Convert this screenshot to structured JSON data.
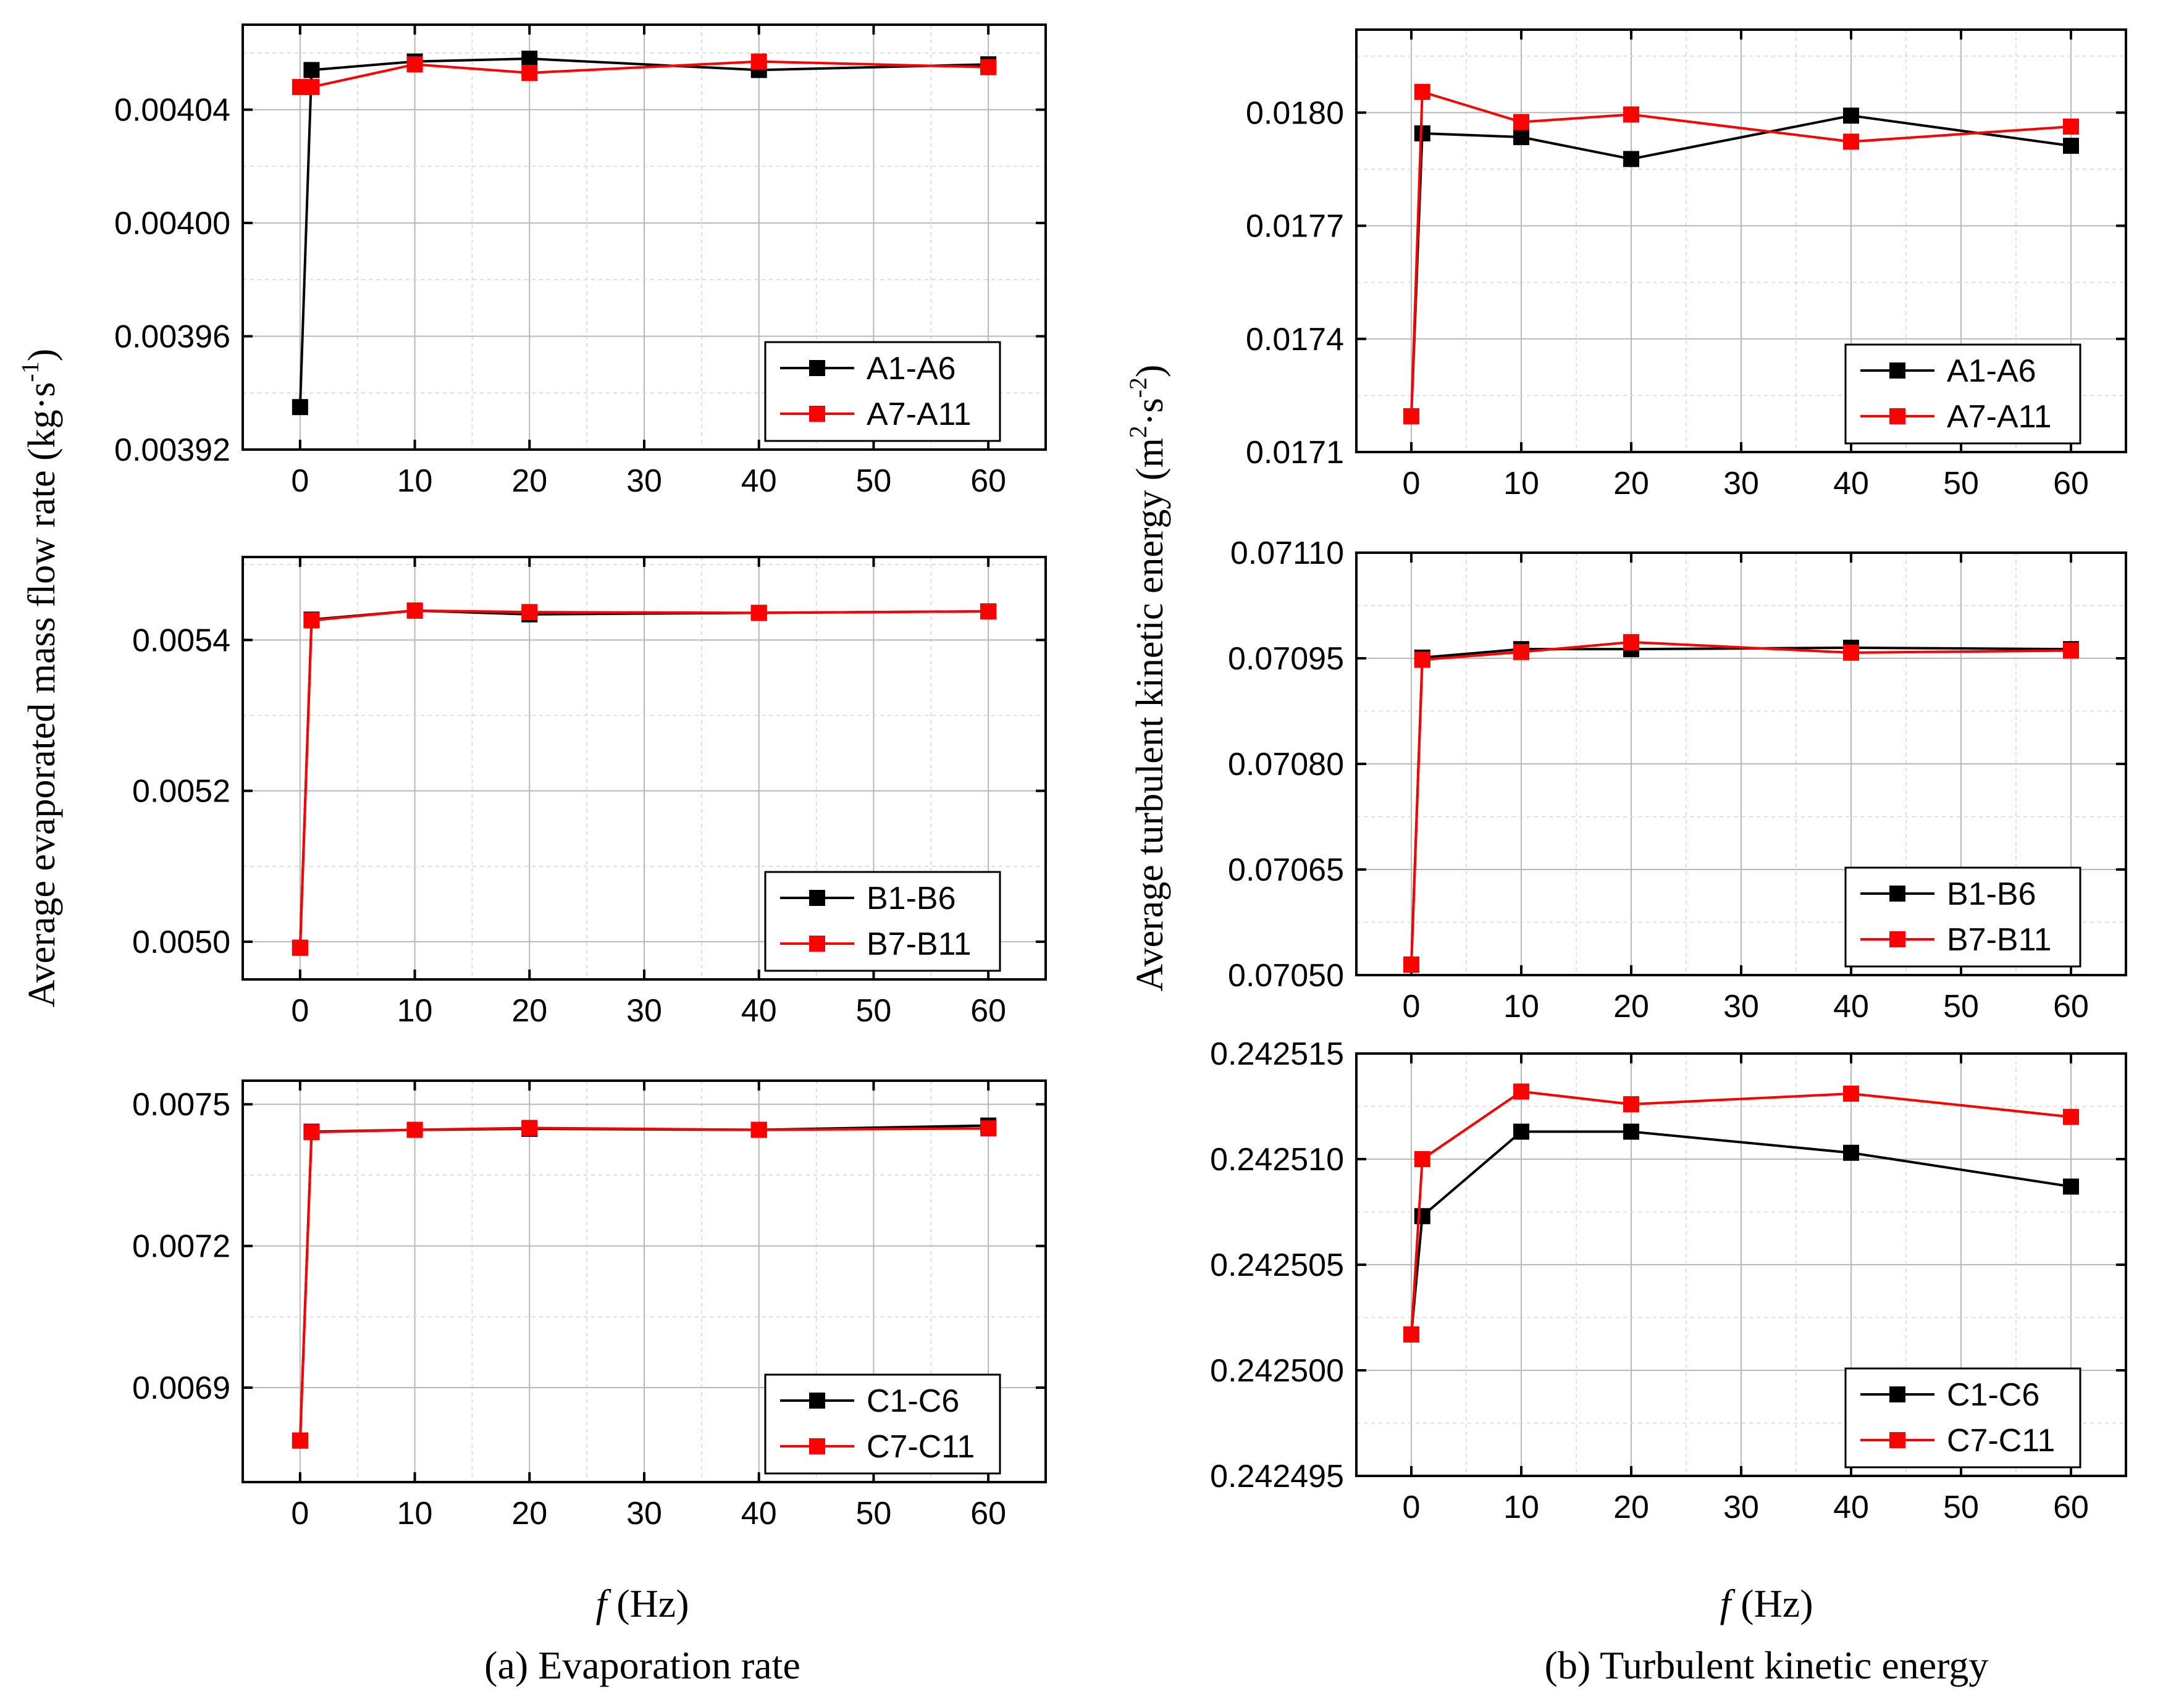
{
  "figure": {
    "col_a": {
      "ylabel": "Average evaporated mass flow rate (kg·s",
      "ylabel_sup": "-1",
      "ylabel_end": ")",
      "xlabel_italic": "f",
      "xlabel_rest": " (Hz)",
      "caption": "(a) Evaporation rate"
    },
    "col_b": {
      "ylabel": "Average turbulent kinetic energy (m",
      "ylabel_sup1": "2",
      "ylabel_mid": "·s",
      "ylabel_sup2": "-2",
      "ylabel_end": ")",
      "xlabel_italic": "f",
      "xlabel_rest": " (Hz)",
      "caption": "(b) Turbulent kinetic energy"
    }
  },
  "chart_data": [
    {
      "id": "a1",
      "type": "line",
      "x": [
        0,
        1,
        10,
        20,
        40,
        60
      ],
      "xlim": [
        -5,
        65
      ],
      "xticks": [
        0,
        10,
        20,
        30,
        40,
        50,
        60
      ],
      "xtick_labels": [
        "0",
        "10",
        "20",
        "30",
        "40",
        "50",
        "60"
      ],
      "ylim": [
        0.00392,
        0.00407
      ],
      "yticks": [
        0.00392,
        0.00396,
        0.004,
        0.00404
      ],
      "ytick_labels": [
        "0.00392",
        "0.00396",
        "0.00400",
        "0.00404"
      ],
      "series": [
        {
          "name": "A1-A6",
          "color": "#000000",
          "values": [
            0.003935,
            0.004054,
            0.004057,
            0.004058,
            0.004054,
            0.004056
          ]
        },
        {
          "name": "A7-A11",
          "color": "#ff0000",
          "values": null,
          "values_list": [
            0.004048,
            0.004048,
            0.004056,
            0.004053,
            0.004057,
            0.004055
          ]
        }
      ],
      "legend": "bottom-right",
      "grid": true
    },
    {
      "id": "a2",
      "type": "line",
      "x": [
        0,
        1,
        10,
        20,
        40,
        60
      ],
      "xlim": [
        -5,
        65
      ],
      "xticks": [
        0,
        10,
        20,
        30,
        40,
        50,
        60
      ],
      "xtick_labels": [
        "0",
        "10",
        "20",
        "30",
        "40",
        "50",
        "60"
      ],
      "ylim": [
        0.00495,
        0.00551
      ],
      "yticks": [
        0.005,
        0.0052,
        0.0054
      ],
      "ytick_labels": [
        "0.0050",
        "0.0052",
        "0.0054"
      ],
      "series": [
        {
          "name": "B1-B6",
          "color": "#000000",
          "values": [
            0.004992,
            0.005427,
            0.005439,
            0.005434,
            0.005436,
            0.005438
          ]
        },
        {
          "name": "B7-B11",
          "color": "#ff0000",
          "values": [
            0.004992,
            0.005426,
            0.005439,
            0.005437,
            0.005436,
            0.005438
          ]
        }
      ],
      "legend": "bottom-right",
      "grid": true
    },
    {
      "id": "a3",
      "type": "line",
      "x": [
        0,
        1,
        10,
        20,
        40,
        60
      ],
      "xlim": [
        -5,
        65
      ],
      "xticks": [
        0,
        10,
        20,
        30,
        40,
        50,
        60
      ],
      "xtick_labels": [
        "0",
        "10",
        "20",
        "30",
        "40",
        "50",
        "60"
      ],
      "ylim": [
        0.0067,
        0.00755
      ],
      "yticks": [
        0.0069,
        0.0072,
        0.0075
      ],
      "ytick_labels": [
        "0.0069",
        "0.0072",
        "0.0075"
      ],
      "series": [
        {
          "name": "C1-C6",
          "color": "#000000",
          "values": [
            0.006788,
            0.007442,
            0.007446,
            0.007448,
            0.007446,
            0.007455
          ]
        },
        {
          "name": "C7-C11",
          "color": "#ff0000",
          "values": [
            0.006788,
            0.007441,
            0.007446,
            0.00745,
            0.007446,
            0.007449
          ]
        }
      ],
      "legend": "bottom-right",
      "grid": true
    },
    {
      "id": "b1",
      "type": "line",
      "x": [
        0,
        1,
        10,
        20,
        40,
        60
      ],
      "xlim": [
        -5,
        65
      ],
      "xticks": [
        0,
        10,
        20,
        30,
        40,
        50,
        60
      ],
      "xtick_labels": [
        "0",
        "10",
        "20",
        "30",
        "40",
        "50",
        "60"
      ],
      "ylim": [
        0.0171,
        0.01822
      ],
      "yticks": [
        0.0171,
        0.0174,
        0.0177,
        0.018
      ],
      "ytick_labels": [
        "0.0171",
        "0.0174",
        "0.0177",
        "0.0180"
      ],
      "series": [
        {
          "name": "A1-A6",
          "color": "#000000",
          "values": [
            0.017195,
            0.017945,
            0.017935,
            0.017877,
            0.017992,
            0.017912
          ]
        },
        {
          "name": "A7-A11",
          "color": "#ff0000",
          "values": [
            0.017195,
            0.018055,
            0.017975,
            0.017995,
            0.017923,
            0.017963
          ]
        }
      ],
      "legend": "bottom-right",
      "grid": true
    },
    {
      "id": "b2",
      "type": "line",
      "x": [
        0,
        1,
        10,
        20,
        40,
        60
      ],
      "xlim": [
        -5,
        65
      ],
      "xticks": [
        0,
        10,
        20,
        30,
        40,
        50,
        60
      ],
      "xtick_labels": [
        "0",
        "10",
        "20",
        "30",
        "40",
        "50",
        "60"
      ],
      "ylim": [
        0.0705,
        0.0711
      ],
      "yticks": [
        0.0705,
        0.07065,
        0.0708,
        0.07095,
        0.0711
      ],
      "ytick_labels": [
        "0.07050",
        "0.07065",
        "0.07080",
        "0.07095",
        "0.07110"
      ],
      "series": [
        {
          "name": "B1-B6",
          "color": "#000000",
          "values": [
            0.070515,
            0.070951,
            0.070963,
            0.070963,
            0.070965,
            0.070963
          ]
        },
        {
          "name": "B7-B11",
          "color": "#ff0000",
          "values": [
            0.070515,
            0.070948,
            0.070959,
            0.070973,
            0.070958,
            0.070961
          ]
        }
      ],
      "legend": "bottom-right",
      "grid": true
    },
    {
      "id": "b3",
      "type": "line",
      "x": [
        0,
        1,
        10,
        20,
        40,
        60
      ],
      "xlim": [
        -5,
        65
      ],
      "xticks": [
        0,
        10,
        20,
        30,
        40,
        50,
        60
      ],
      "xtick_labels": [
        "0",
        "10",
        "20",
        "30",
        "40",
        "50",
        "60"
      ],
      "ylim": [
        0.242495,
        0.242515
      ],
      "yticks": [
        0.242495,
        0.2425,
        0.242505,
        0.24251,
        0.242515
      ],
      "ytick_labels": [
        "0.242495",
        "0.242500",
        "0.242505",
        "0.242510",
        "0.242515"
      ],
      "series": [
        {
          "name": "C1-C6",
          "color": "#000000",
          "values": [
            0.2425017,
            0.2425073,
            0.2425113,
            0.2425113,
            0.2425103,
            0.2425087
          ]
        },
        {
          "name": "C7-C11",
          "color": "#ff0000",
          "values": [
            0.2425017,
            0.24251,
            0.2425132,
            0.2425126,
            0.2425131,
            0.242512
          ]
        }
      ],
      "legend": "bottom-right",
      "grid": true
    }
  ]
}
